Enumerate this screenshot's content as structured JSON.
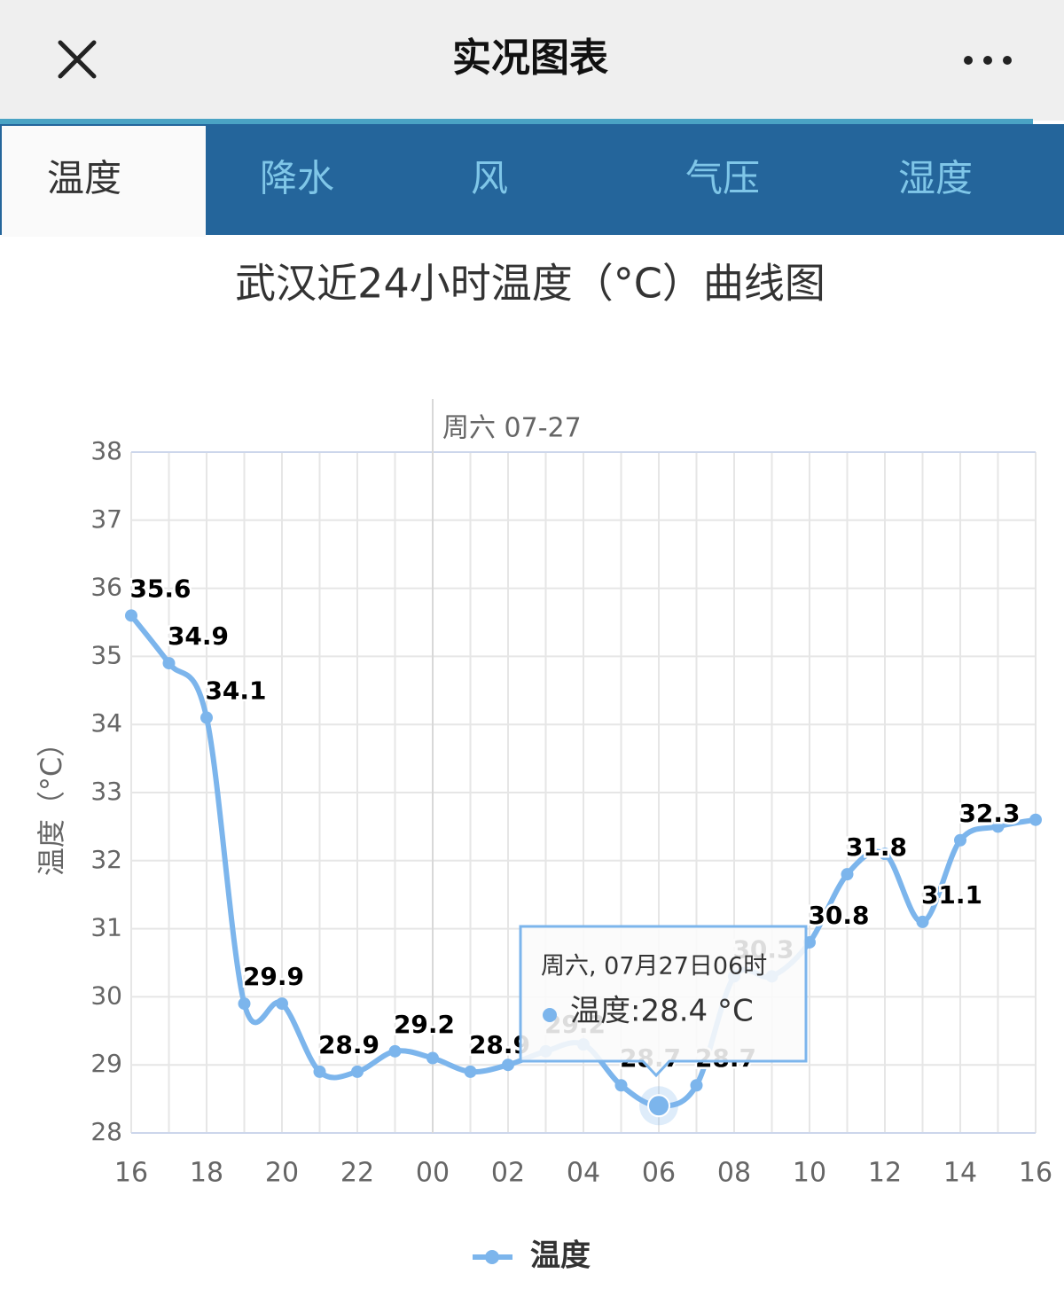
{
  "header": {
    "title": "实况图表"
  },
  "tabs": [
    "温度",
    "降水",
    "风",
    "气压",
    "湿度"
  ],
  "chart_data": {
    "type": "line",
    "title": "武汉近24小时温度（°C）曲线图",
    "annotation": "周六 07-27",
    "ylabel": "温度（°C）",
    "categories": [
      "16",
      null,
      "18",
      null,
      "20",
      null,
      "22",
      null,
      "00",
      null,
      "02",
      null,
      "04",
      null,
      "06",
      null,
      "08",
      null,
      "10",
      null,
      "12",
      null,
      "14",
      null,
      "16"
    ],
    "series": [
      {
        "name": "温度",
        "color": "#7cb5ec",
        "values": [
          35.6,
          34.9,
          34.1,
          29.9,
          29.9,
          28.9,
          28.9,
          29.2,
          29.1,
          28.9,
          29.0,
          29.2,
          29.3,
          28.7,
          28.4,
          28.7,
          30.3,
          30.3,
          30.8,
          31.8,
          32.1,
          31.1,
          32.3,
          32.5,
          32.6
        ],
        "value_labels": [
          "35.6",
          "34.9",
          "34.1",
          "29.9",
          null,
          "28.9",
          null,
          "29.2",
          null,
          "28.9",
          null,
          "29.2",
          null,
          "28.7",
          null,
          "28.7",
          "30.3",
          null,
          "30.8",
          "31.8",
          null,
          "31.1",
          "32.3",
          null,
          null
        ]
      }
    ],
    "ylim": [
      28,
      38
    ],
    "yticks": [
      28,
      29,
      30,
      31,
      32,
      33,
      34,
      35,
      36,
      37,
      38
    ],
    "grid": true,
    "tooltip": {
      "title": "周六, 07月27日06时",
      "text": "温度:28.4 °C"
    }
  }
}
